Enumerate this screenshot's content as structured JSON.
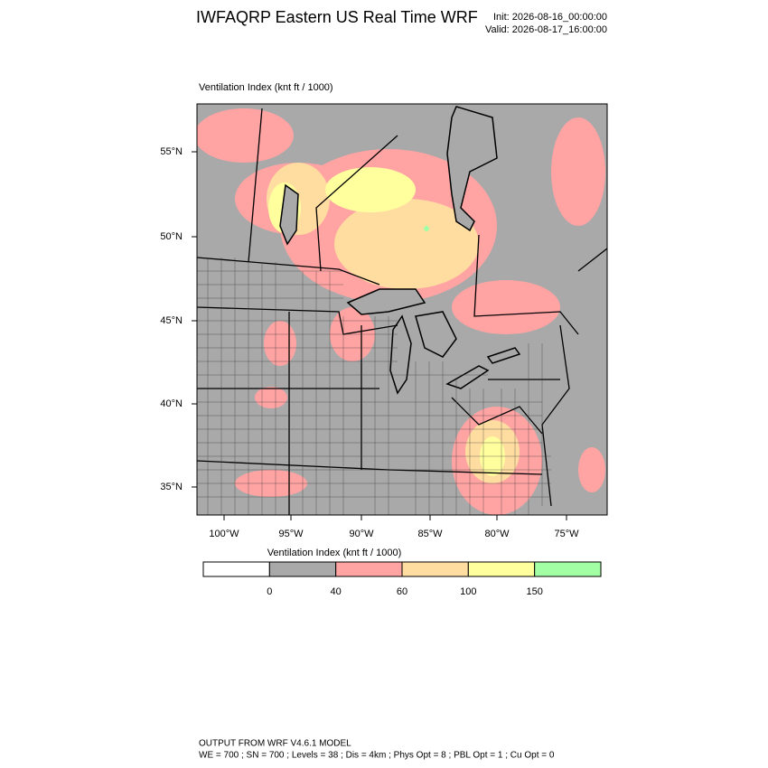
{
  "header": {
    "title": "IWFAQRP Eastern US Real Time WRF",
    "init": "Init: 2026-08-16_00:00:00",
    "valid": "Valid: 2026-08-17_16:00:00"
  },
  "map": {
    "label": "Ventilation Index   (knt ft / 1000)",
    "lat_labels": [
      "55°N",
      "50°N",
      "45°N",
      "40°N",
      "35°N"
    ],
    "lon_labels": [
      "100°W",
      "95°W",
      "90°W",
      "85°W",
      "80°W",
      "75°W"
    ]
  },
  "legend": {
    "title": "Ventilation Index  (knt ft / 1000)",
    "colors": [
      "#ffffff",
      "#a9a9a9",
      "#ffa3a3",
      "#ffdda0",
      "#ffff9e",
      "#a3ffa3"
    ],
    "labels": [
      0,
      40,
      60,
      100,
      150
    ]
  },
  "footer": {
    "line1": "OUTPUT FROM WRF V4.6.1 MODEL",
    "line2": "WE = 700 ; SN = 700 ; Levels = 38 ; Dis = 4km ; Phys Opt = 8 ; PBL Opt = 1 ; Cu Opt = 0"
  }
}
